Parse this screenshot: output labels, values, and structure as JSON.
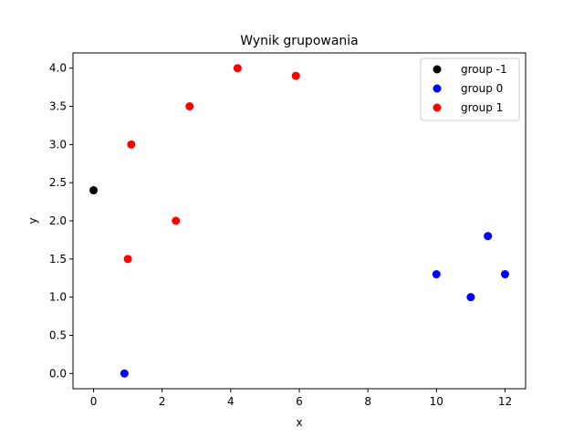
{
  "chart_data": {
    "type": "scatter",
    "title": "Wynik grupowania",
    "xlabel": "x",
    "ylabel": "y",
    "xlim": [
      -0.6,
      12.6
    ],
    "ylim": [
      -0.2,
      4.2
    ],
    "xticks": [
      0,
      2,
      4,
      6,
      8,
      10,
      12
    ],
    "yticks": [
      0.0,
      0.5,
      1.0,
      1.5,
      2.0,
      2.5,
      3.0,
      3.5,
      4.0
    ],
    "xtick_labels": [
      "0",
      "2",
      "4",
      "6",
      "8",
      "10",
      "12"
    ],
    "ytick_labels": [
      "0.0",
      "0.5",
      "1.0",
      "1.5",
      "2.0",
      "2.5",
      "3.0",
      "3.5",
      "4.0"
    ],
    "grid": false,
    "legend_position": "top-right",
    "series": [
      {
        "name": "group -1",
        "color": "#000000",
        "points": [
          [
            0.0,
            2.4
          ]
        ]
      },
      {
        "name": "group 0",
        "color": "#0000ff",
        "points": [
          [
            0.9,
            0.0
          ],
          [
            10.0,
            1.3
          ],
          [
            11.0,
            1.0
          ],
          [
            11.5,
            1.8
          ],
          [
            12.0,
            1.3
          ]
        ]
      },
      {
        "name": "group 1",
        "color": "#ff0000",
        "points": [
          [
            1.0,
            1.5
          ],
          [
            1.1,
            3.0
          ],
          [
            2.4,
            2.0
          ],
          [
            2.8,
            3.5
          ],
          [
            4.2,
            4.0
          ],
          [
            5.9,
            3.9
          ]
        ]
      }
    ]
  }
}
